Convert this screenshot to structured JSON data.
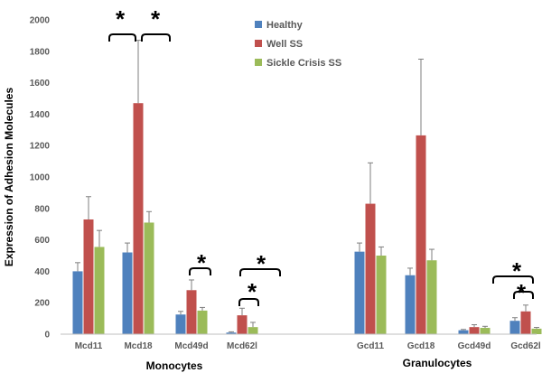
{
  "chart_data": {
    "type": "bar",
    "ylabel": "Expression  of Adhesion Molecules",
    "ylim": [
      0,
      2000
    ],
    "yticks": [
      0,
      200,
      400,
      600,
      800,
      1000,
      1200,
      1400,
      1600,
      1800,
      2000
    ],
    "grid": false,
    "legend_position": "top-center",
    "categories": [
      "Mcd11",
      "Mcd18",
      "Mcd49d",
      "Mcd62l",
      "Gcd11",
      "Gcd18",
      "Gcd49d",
      "Gcd62l"
    ],
    "groups": [
      {
        "label": "Monocytes",
        "categories": [
          "Mcd11",
          "Mcd18",
          "Mcd49d",
          "Mcd62l"
        ]
      },
      {
        "label": "Granulocytes",
        "categories": [
          "Gcd11",
          "Gcd18",
          "Gcd49d",
          "Gcd62l"
        ]
      }
    ],
    "series": [
      {
        "name": "Healthy",
        "color": "#4f81bd",
        "values": [
          400,
          520,
          125,
          10,
          525,
          375,
          25,
          85
        ],
        "errors": [
          55,
          60,
          20,
          5,
          55,
          45,
          5,
          20
        ]
      },
      {
        "name": "Well SS",
        "color": "#c0504d",
        "values": [
          730,
          1470,
          280,
          120,
          830,
          1265,
          45,
          145
        ],
        "errors": [
          145,
          400,
          65,
          45,
          260,
          485,
          15,
          40
        ]
      },
      {
        "name": "Sickle Crisis SS",
        "color": "#9bbb59",
        "values": [
          555,
          710,
          150,
          45,
          500,
          470,
          40,
          35
        ],
        "errors": [
          105,
          70,
          20,
          30,
          55,
          70,
          10,
          8
        ]
      }
    ],
    "annotations": [
      {
        "text": "*",
        "category": "Mcd18",
        "compares": [
          "Healthy",
          "Well SS"
        ]
      },
      {
        "text": "*",
        "category": "Mcd18",
        "compares": [
          "Well SS",
          "Sickle Crisis SS"
        ]
      },
      {
        "text": "*",
        "category": "Mcd49d",
        "compares": [
          "Well SS",
          "Sickle Crisis SS"
        ]
      },
      {
        "text": "*",
        "category": "Mcd62l",
        "compares": [
          "Healthy",
          "Well SS"
        ]
      },
      {
        "text": "*",
        "category": "Mcd62l",
        "compares": [
          "Healthy",
          "Sickle Crisis SS"
        ]
      },
      {
        "text": "*",
        "category": "Gcd62l",
        "compares": [
          "Healthy",
          "Sickle Crisis SS"
        ]
      },
      {
        "text": "*",
        "category": "Gcd62l",
        "compares": [
          "Well SS",
          "Sickle Crisis SS"
        ]
      }
    ]
  }
}
